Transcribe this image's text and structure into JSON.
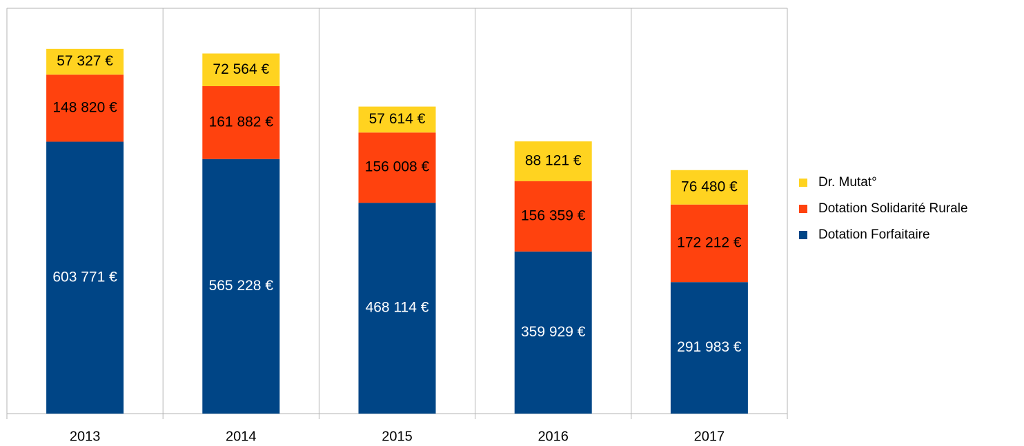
{
  "chart_data": {
    "type": "stacked_bar",
    "categories": [
      "2013",
      "2014",
      "2015",
      "2016",
      "2017"
    ],
    "series": [
      {
        "name": "Dotation Forfaitaire",
        "color": "#004586",
        "values": [
          603771,
          565228,
          468114,
          359929,
          291983
        ],
        "value_labels": [
          "603 771 €",
          "565 228 €",
          "468 114 €",
          "359 929 €",
          "291 983 €"
        ]
      },
      {
        "name": "Dotation Solidarité Rurale",
        "color": "#ff420e",
        "values": [
          148820,
          161882,
          156008,
          156359,
          172212
        ],
        "value_labels": [
          "148 820 €",
          "161 882 €",
          "156 008 €",
          "156 359 €",
          "172 212 €"
        ]
      },
      {
        "name": "Dr. Mutat°",
        "color": "#ffd320",
        "values": [
          57327,
          72564,
          57614,
          88121,
          76480
        ],
        "value_labels": [
          "57 327 €",
          "72 564 €",
          "57 614 €",
          "88 121 €",
          "76 480 €"
        ]
      }
    ],
    "ylim": [
      0,
      900000
    ],
    "grid": true,
    "legend": "right"
  }
}
